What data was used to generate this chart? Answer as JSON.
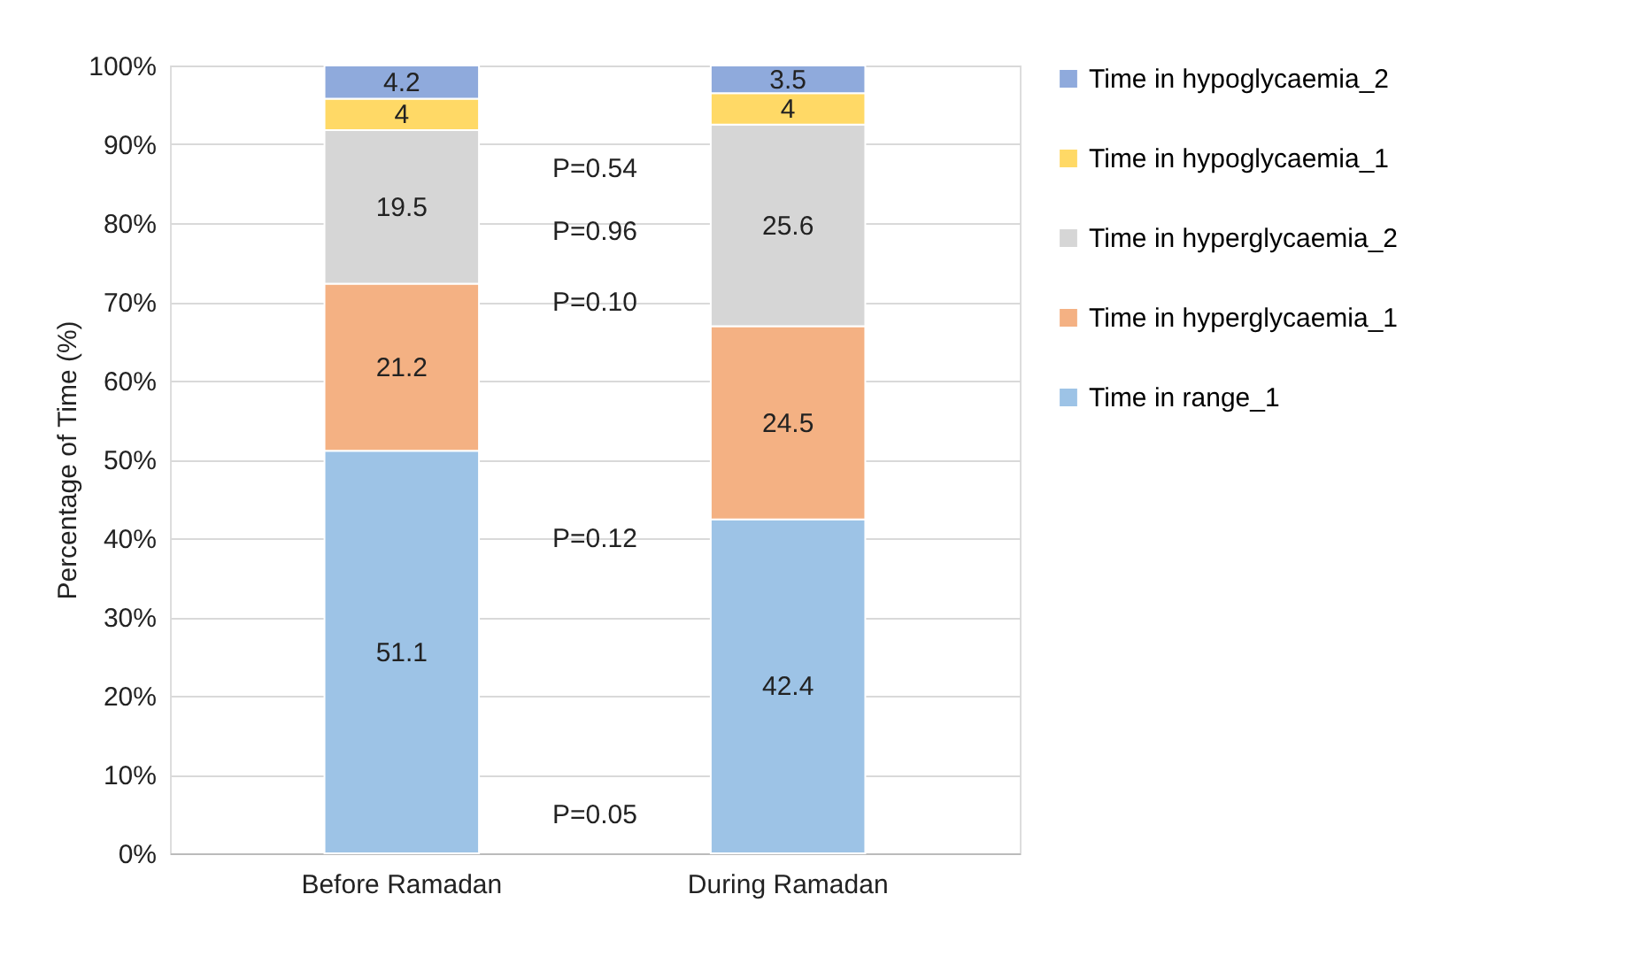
{
  "chart_data": {
    "type": "bar",
    "stacked": true,
    "ylabel": "Percentage of Time (%)",
    "categories": [
      "Before Ramadan",
      "During Ramadan"
    ],
    "series": [
      {
        "name": "Time in range_1",
        "color": "#9dc3e6",
        "values": [
          51.1,
          42.4
        ]
      },
      {
        "name": "Time in hyperglycaemia_1",
        "color": "#f4b183",
        "values": [
          21.2,
          24.5
        ]
      },
      {
        "name": "Time in hyperglycaemia_2",
        "color": "#d6d6d6",
        "values": [
          19.5,
          25.6
        ]
      },
      {
        "name": "Time in hypoglycaemia_1",
        "color": "#ffd966",
        "values": [
          4,
          4
        ]
      },
      {
        "name": "Time in hypoglycaemia_2",
        "color": "#8faadc",
        "values": [
          4.2,
          3.5
        ]
      }
    ],
    "ylim": [
      0,
      100
    ],
    "yticks": [
      {
        "value": 0,
        "label": "0%"
      },
      {
        "value": 10,
        "label": "10%"
      },
      {
        "value": 20,
        "label": "20%"
      },
      {
        "value": 30,
        "label": "30%"
      },
      {
        "value": 40,
        "label": "40%"
      },
      {
        "value": 50,
        "label": "50%"
      },
      {
        "value": 60,
        "label": "60%"
      },
      {
        "value": 70,
        "label": "70%"
      },
      {
        "value": 80,
        "label": "80%"
      },
      {
        "value": 90,
        "label": "90%"
      },
      {
        "value": 100,
        "label": "100%"
      }
    ],
    "grid": "y",
    "legend": "right",
    "data_labels": true,
    "annotations": [
      "P=0.54",
      "P=0.96",
      "P=0.10",
      "P=0.12",
      "P=0.05"
    ]
  }
}
